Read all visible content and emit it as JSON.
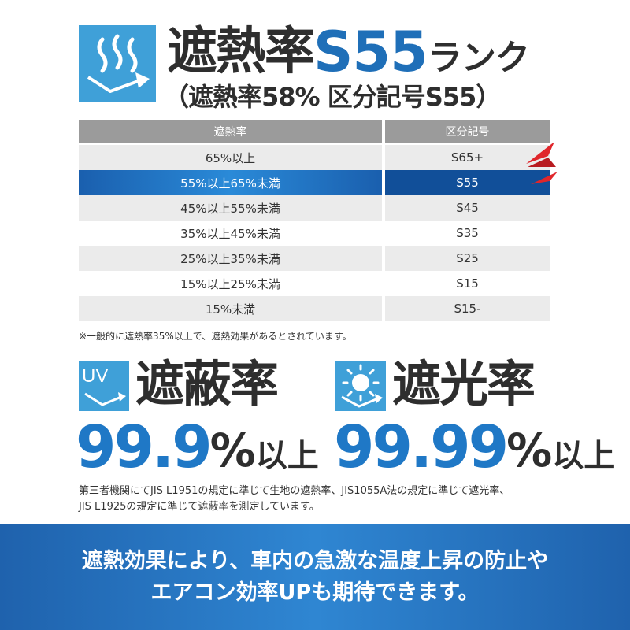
{
  "header": {
    "icon": "heat-reflect-icon",
    "title_main": "遮熱率",
    "title_rank": "S55",
    "title_suffix": "ランク",
    "subtitle": "（遮熱率58% 区分記号S55）"
  },
  "table": {
    "headers": [
      "遮熱率",
      "区分記号"
    ],
    "rows": [
      {
        "rate": "65%以上",
        "code": "S65+"
      },
      {
        "rate": "55%以上65%未満",
        "code": "S55"
      },
      {
        "rate": "45%以上55%未満",
        "code": "S45"
      },
      {
        "rate": "35%以上45%未満",
        "code": "S35"
      },
      {
        "rate": "25%以上35%未満",
        "code": "S25"
      },
      {
        "rate": "15%以上25%未満",
        "code": "S15"
      },
      {
        "rate": "15%未満",
        "code": "S15-"
      }
    ],
    "highlighted_row": 1,
    "note": "※一般的に遮熱率35%以上で、遮熱効果があるとされています。"
  },
  "uv": {
    "icon_text": "UV",
    "title": "遮蔽率",
    "value": "99.9",
    "percent": "%",
    "suffix": "以上"
  },
  "light": {
    "icon": "sun-icon",
    "title": "遮光率",
    "value": "99.99",
    "percent": "%",
    "suffix": "以上"
  },
  "description": {
    "line1": "第三者機関にてJIS L1951の規定に準じて生地の遮熱率、JIS1055A法の規定に準じて遮光率、",
    "line2": "JIS L1925の規定に準じて遮蔽率を測定しています。"
  },
  "banner": {
    "line1": "遮熱効果により、車内の急激な温度上昇の防止や",
    "line2": "エアコン効率UPも期待できます。"
  },
  "colors": {
    "accent_blue": "#1f78c6",
    "icon_blue": "#3fa0d8",
    "highlight_dark": "#114f99",
    "arrow_red": "#e0262b"
  }
}
